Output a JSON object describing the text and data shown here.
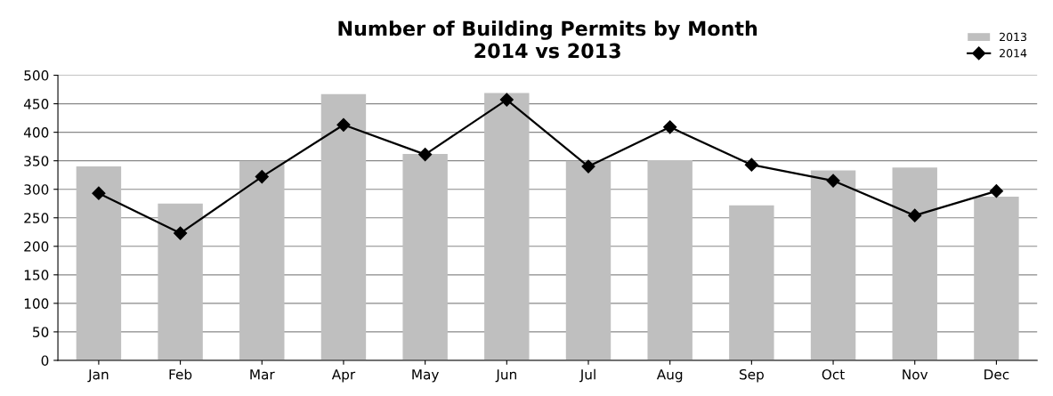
{
  "chart_data": {
    "type": "bar",
    "title": "Number of Building Permits by Month\n2014 vs 2013",
    "categories": [
      "Jan",
      "Feb",
      "Mar",
      "Apr",
      "May",
      "Jun",
      "Jul",
      "Aug",
      "Sep",
      "Oct",
      "Nov",
      "Dec"
    ],
    "series": [
      {
        "name": "2013",
        "color": "#bfbfbf",
        "values": [
          340,
          275,
          350,
          467,
          362,
          469,
          350,
          351,
          272,
          333,
          338,
          287
        ]
      },
      {
        "name": "2014",
        "type": "line",
        "color": "#000000",
        "marker": "diamond",
        "values": [
          293,
          223,
          322,
          413,
          361,
          457,
          340,
          409,
          343,
          315,
          254,
          297
        ]
      }
    ],
    "ylim": [
      0,
      500
    ],
    "yticks": [
      0,
      50,
      100,
      150,
      200,
      250,
      300,
      350,
      400,
      450,
      500
    ],
    "grid": "y",
    "legend": "top right"
  }
}
